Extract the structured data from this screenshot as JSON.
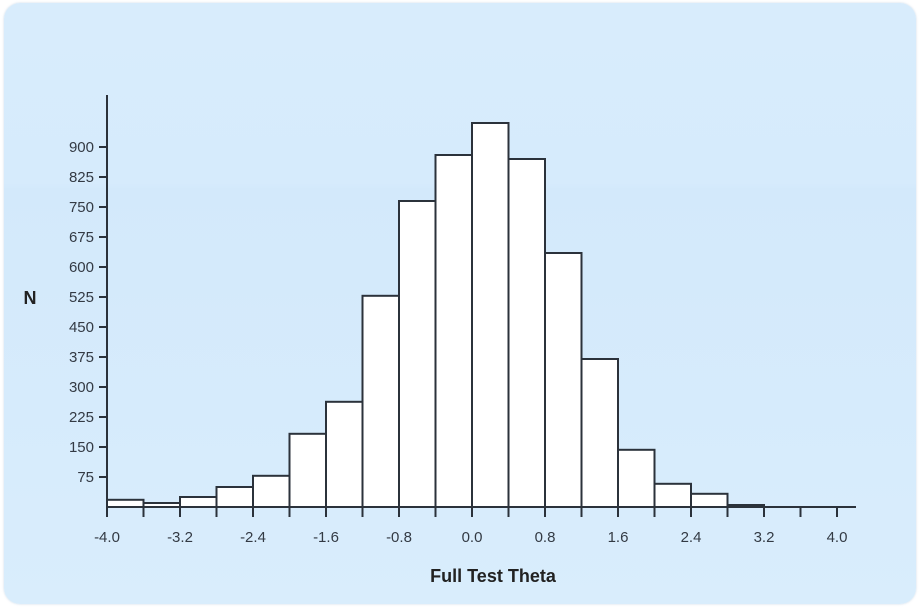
{
  "chart_data": {
    "type": "bar",
    "subtype": "histogram",
    "title": "",
    "xlabel": "Full Test Theta",
    "ylabel": "N",
    "bin_width": 0.4,
    "bin_edges": [
      -4.0,
      -3.6,
      -3.2,
      -2.8,
      -2.4,
      -2.0,
      -1.6,
      -1.2,
      -0.8,
      -0.4,
      0.0,
      0.4,
      0.8,
      1.2,
      1.6,
      2.0,
      2.4,
      2.8,
      3.2
    ],
    "values": [
      18,
      10,
      25,
      50,
      78,
      183,
      263,
      528,
      765,
      880,
      960,
      870,
      635,
      370,
      143,
      58,
      33,
      5
    ],
    "xlim": [
      -4.0,
      4.2
    ],
    "ylim": [
      0,
      1000
    ],
    "x_ticks": [
      -4.0,
      -3.6,
      -3.2,
      -2.8,
      -2.4,
      -2.0,
      -1.6,
      -1.2,
      -0.8,
      -0.4,
      0.0,
      0.4,
      0.8,
      1.2,
      1.6,
      2.0,
      2.4,
      2.8,
      3.2,
      3.6,
      4.0
    ],
    "x_tick_labels": [
      "-4.0",
      "-3.2",
      "-2.4",
      "-1.6",
      "-0.8",
      "0.0",
      "0.8",
      "1.6",
      "2.4",
      "3.2",
      "4.0"
    ],
    "y_ticks": [
      75,
      150,
      225,
      300,
      375,
      450,
      525,
      600,
      675,
      750,
      825,
      900
    ],
    "y_tick_labels": [
      "75",
      "150",
      "225",
      "300",
      "375",
      "450",
      "525",
      "600",
      "675",
      "750",
      "825",
      "900"
    ],
    "grid": false,
    "legend": null,
    "bar_fill": "#ffffff",
    "bar_stroke": "#2b323b"
  },
  "labels": {
    "x_axis_title": "Full Test Theta",
    "y_axis_title": "N"
  }
}
